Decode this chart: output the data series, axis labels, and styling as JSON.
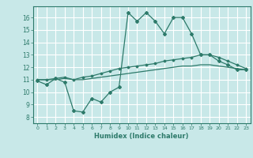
{
  "xlabel": "Humidex (Indice chaleur)",
  "background_color": "#c8e8e8",
  "grid_color": "#ffffff",
  "line_color": "#2d7a6a",
  "xlim": [
    -0.5,
    23.5
  ],
  "ylim": [
    7.5,
    16.9
  ],
  "yticks": [
    8,
    9,
    10,
    11,
    12,
    13,
    14,
    15,
    16
  ],
  "xticks": [
    0,
    1,
    2,
    3,
    4,
    5,
    6,
    7,
    8,
    9,
    10,
    11,
    12,
    13,
    14,
    15,
    16,
    17,
    18,
    19,
    20,
    21,
    22,
    23
  ],
  "series1_x": [
    0,
    1,
    2,
    3,
    4,
    5,
    6,
    7,
    8,
    9,
    10,
    11,
    12,
    13,
    14,
    15,
    16,
    17,
    18,
    19,
    20,
    21,
    22,
    23
  ],
  "series1_y": [
    10.9,
    10.6,
    11.1,
    10.8,
    8.5,
    8.4,
    9.5,
    9.2,
    10.0,
    10.4,
    16.4,
    15.7,
    16.4,
    15.7,
    14.7,
    16.0,
    16.0,
    14.7,
    13.0,
    13.0,
    12.5,
    12.2,
    11.8,
    11.8
  ],
  "series2_x": [
    0,
    1,
    2,
    3,
    4,
    5,
    6,
    7,
    8,
    9,
    10,
    11,
    12,
    13,
    14,
    15,
    16,
    17,
    18,
    19,
    20,
    21,
    22,
    23
  ],
  "series2_y": [
    11.0,
    11.0,
    11.1,
    11.2,
    11.0,
    11.2,
    11.3,
    11.5,
    11.7,
    11.9,
    12.0,
    12.1,
    12.2,
    12.3,
    12.5,
    12.6,
    12.7,
    12.8,
    13.0,
    13.0,
    12.8,
    12.5,
    12.2,
    11.9
  ],
  "series3_x": [
    0,
    1,
    2,
    3,
    4,
    5,
    6,
    7,
    8,
    9,
    10,
    11,
    12,
    13,
    14,
    15,
    16,
    17,
    18,
    19,
    20,
    21,
    22,
    23
  ],
  "series3_y": [
    11.0,
    11.0,
    11.0,
    11.1,
    11.0,
    11.0,
    11.1,
    11.2,
    11.3,
    11.4,
    11.5,
    11.6,
    11.7,
    11.8,
    11.9,
    12.0,
    12.1,
    12.1,
    12.2,
    12.2,
    12.1,
    12.0,
    11.9,
    11.8
  ]
}
